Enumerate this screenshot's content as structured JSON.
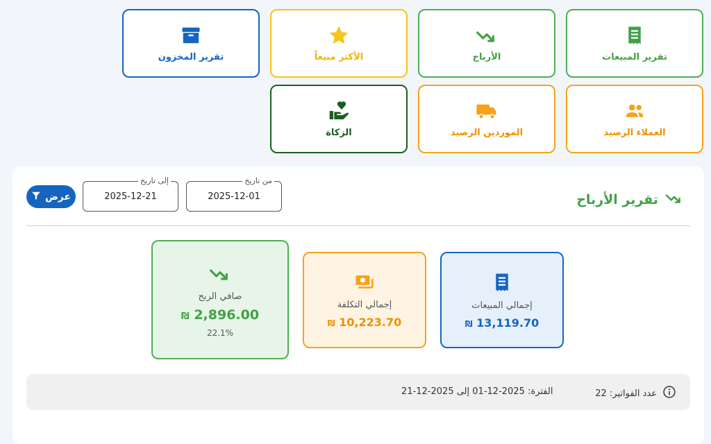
{
  "tiles": {
    "inventory": {
      "label": "تقرير المخزون",
      "icon": "archive-box-icon",
      "color": "#1565c0"
    },
    "best_selling": {
      "label": "الأكثر مبيعاً",
      "icon": "star-icon",
      "color": "#f0b400"
    },
    "profits": {
      "label": "الأرباح",
      "icon": "trending-up-icon",
      "color": "#43a047"
    },
    "sales_report": {
      "label": "تقرير المبيعات",
      "icon": "receipt-icon",
      "color": "#43a047"
    },
    "zakat": {
      "label": "الزكاة",
      "icon": "hand-heart-icon",
      "color": "#1b5e20"
    },
    "suppliers_balance": {
      "label": "الموردين الرصيد",
      "icon": "truck-icon",
      "color": "#ef8f00"
    },
    "customers_balance": {
      "label": "العملاء الرصيد",
      "icon": "people-icon",
      "color": "#ef8f00"
    }
  },
  "report": {
    "title": "تقرير الأرباح",
    "from_label": "من تاريخ",
    "from_value": "2025-12-01",
    "to_label": "إلى تاريخ",
    "to_value": "2025-12-21",
    "show_button": "عرض"
  },
  "cards": {
    "total_sales": {
      "label": "إجمالي المبيعات",
      "value": "13,119.70",
      "currency": "₪"
    },
    "total_cost": {
      "label": "إجمالي التكلفة",
      "value": "10,223.70",
      "currency": "₪"
    },
    "net_profit": {
      "label": "صافي الربح",
      "value": "2,896.00",
      "currency": "₪",
      "percent": "22.1%"
    }
  },
  "info": {
    "invoices": "عدد الفواتير: 22",
    "period": "الفترة: 2025-12-01 إلى 2025-12-21"
  }
}
